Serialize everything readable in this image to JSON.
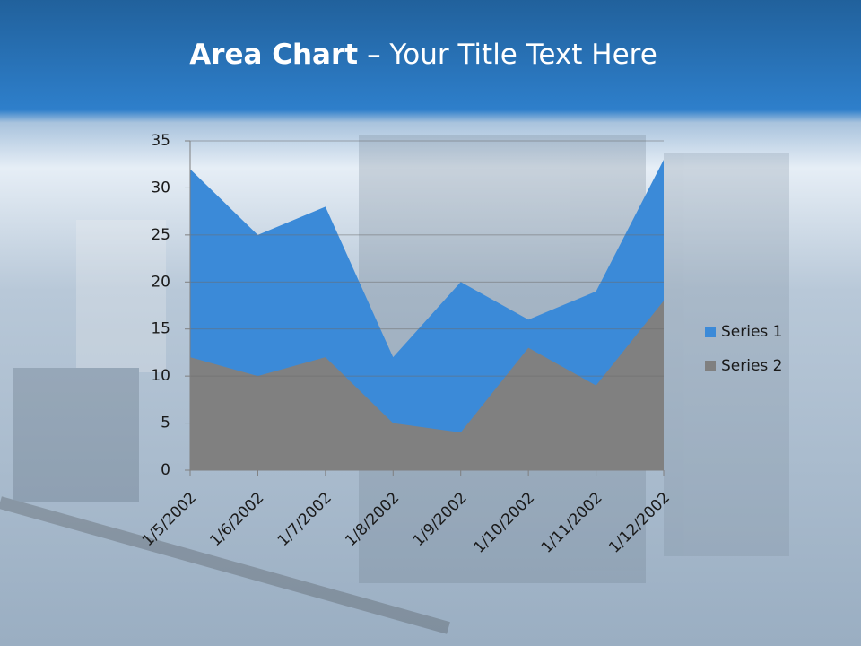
{
  "chart_data": {
    "type": "area",
    "title_parts": [
      "Area Chart",
      "– Your Title Text Here"
    ],
    "categories": [
      "1/5/2002",
      "1/6/2002",
      "1/7/2002",
      "1/8/2002",
      "1/9/2002",
      "1/10/2002",
      "1/11/2002",
      "1/12/2002"
    ],
    "series": [
      {
        "name": "Series 1",
        "color": "#3b8ad8",
        "values": [
          32,
          25,
          28,
          12,
          20,
          16,
          19,
          33
        ]
      },
      {
        "name": "Series 2",
        "color": "#808080",
        "values": [
          12,
          10,
          12,
          5,
          4,
          13,
          9,
          18
        ]
      }
    ],
    "ylim": [
      0,
      35
    ],
    "yticks": [
      0,
      5,
      10,
      15,
      20,
      25,
      30,
      35
    ],
    "grid": true,
    "legend": "right"
  }
}
